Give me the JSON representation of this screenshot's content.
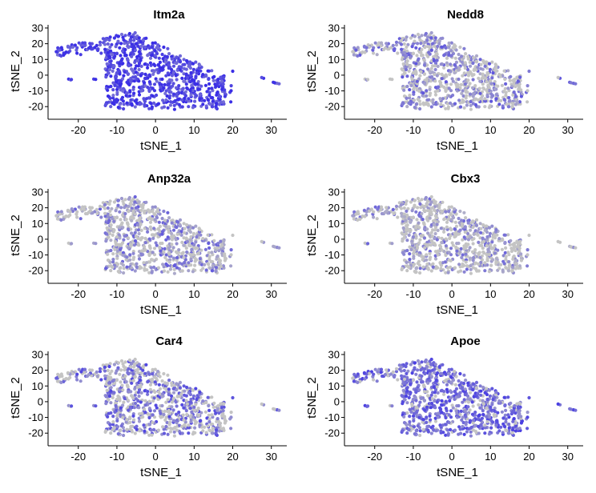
{
  "colors": {
    "low": "#c4c4c4",
    "high": "#3a2ee6",
    "axis": "#000000",
    "background": "#ffffff"
  },
  "chart_data": [
    {
      "type": "scatter",
      "title": "Itm2a",
      "xlabel": "tSNE_1",
      "ylabel": "tSNE_2",
      "xlim": [
        -27,
        34
      ],
      "ylim": [
        -26,
        31
      ],
      "xticks": [
        -20,
        -10,
        0,
        10,
        20,
        30
      ],
      "yticks": [
        -20,
        -10,
        0,
        10,
        20,
        30
      ],
      "grid": false,
      "legend": "none",
      "expression_level": 0.85,
      "gray_fraction": 0.0
    },
    {
      "type": "scatter",
      "title": "Nedd8",
      "xlabel": "tSNE_1",
      "ylabel": "tSNE_2",
      "xlim": [
        -27,
        34
      ],
      "ylim": [
        -26,
        31
      ],
      "xticks": [
        -20,
        -10,
        0,
        10,
        20,
        30
      ],
      "yticks": [
        -20,
        -10,
        0,
        10,
        20,
        30
      ],
      "grid": false,
      "legend": "none",
      "expression_level": 0.45,
      "gray_fraction": 0.45
    },
    {
      "type": "scatter",
      "title": "Anp32a",
      "xlabel": "tSNE_1",
      "ylabel": "tSNE_2",
      "xlim": [
        -27,
        34
      ],
      "ylim": [
        -26,
        31
      ],
      "xticks": [
        -20,
        -10,
        0,
        10,
        20,
        30
      ],
      "yticks": [
        -20,
        -10,
        0,
        10,
        20,
        30
      ],
      "grid": false,
      "legend": "none",
      "expression_level": 0.4,
      "gray_fraction": 0.5
    },
    {
      "type": "scatter",
      "title": "Cbx3",
      "xlabel": "tSNE_1",
      "ylabel": "tSNE_2",
      "xlim": [
        -27,
        34
      ],
      "ylim": [
        -26,
        31
      ],
      "xticks": [
        -20,
        -10,
        0,
        10,
        20,
        30
      ],
      "yticks": [
        -20,
        -10,
        0,
        10,
        20,
        30
      ],
      "grid": false,
      "legend": "none",
      "expression_level": 0.35,
      "gray_fraction": 0.55
    },
    {
      "type": "scatter",
      "title": "Car4",
      "xlabel": "tSNE_1",
      "ylabel": "tSNE_2",
      "xlim": [
        -27,
        34
      ],
      "ylim": [
        -26,
        31
      ],
      "xticks": [
        -20,
        -10,
        0,
        10,
        20,
        30
      ],
      "yticks": [
        -20,
        -10,
        0,
        10,
        20,
        30
      ],
      "grid": false,
      "legend": "none",
      "expression_level": 0.55,
      "gray_fraction": 0.45
    },
    {
      "type": "scatter",
      "title": "Apoe",
      "xlabel": "tSNE_1",
      "ylabel": "tSNE_2",
      "xlim": [
        -27,
        34
      ],
      "ylim": [
        -26,
        31
      ],
      "xticks": [
        -20,
        -10,
        0,
        10,
        20,
        30
      ],
      "yticks": [
        -20,
        -10,
        0,
        10,
        20,
        30
      ],
      "grid": false,
      "legend": "none",
      "expression_level": 0.6,
      "gray_fraction": 0.15
    }
  ]
}
